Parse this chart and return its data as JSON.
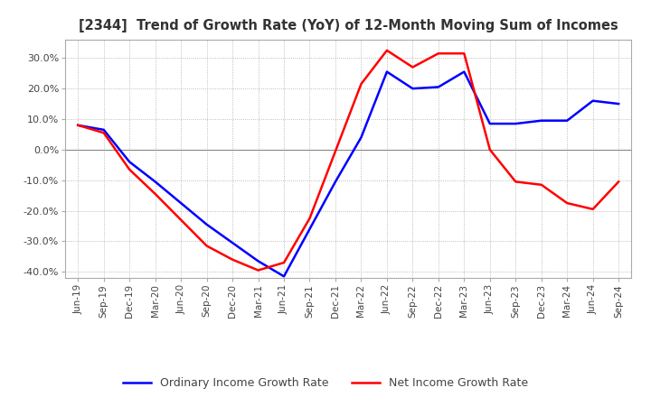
{
  "title": "[2344]  Trend of Growth Rate (YoY) of 12-Month Moving Sum of Incomes",
  "ylim": [
    -0.42,
    0.36
  ],
  "yticks": [
    -0.4,
    -0.3,
    -0.2,
    -0.1,
    0.0,
    0.1,
    0.2,
    0.3
  ],
  "background_color": "#ffffff",
  "grid_color": "#aaaaaa",
  "legend_labels": [
    "Ordinary Income Growth Rate",
    "Net Income Growth Rate"
  ],
  "legend_colors": [
    "#0000ff",
    "#ff0000"
  ],
  "x_labels": [
    "Jun-19",
    "Sep-19",
    "Dec-19",
    "Mar-20",
    "Jun-20",
    "Sep-20",
    "Dec-20",
    "Mar-21",
    "Jun-21",
    "Sep-21",
    "Dec-21",
    "Mar-22",
    "Jun-22",
    "Sep-22",
    "Dec-22",
    "Mar-23",
    "Jun-23",
    "Sep-23",
    "Dec-23",
    "Mar-24",
    "Jun-24",
    "Sep-24"
  ],
  "ordinary_income": [
    0.08,
    0.065,
    -0.04,
    -0.105,
    -0.175,
    -0.245,
    -0.305,
    -0.365,
    -0.415,
    -0.26,
    -0.105,
    0.04,
    0.255,
    0.2,
    0.205,
    0.255,
    0.085,
    0.085,
    0.095,
    0.095,
    0.16,
    0.15
  ],
  "net_income": [
    0.08,
    0.055,
    -0.065,
    -0.145,
    -0.23,
    -0.315,
    -0.36,
    -0.395,
    -0.37,
    -0.225,
    -0.005,
    0.215,
    0.325,
    0.27,
    0.315,
    0.315,
    0.0,
    -0.105,
    -0.115,
    -0.175,
    -0.195,
    -0.105
  ]
}
